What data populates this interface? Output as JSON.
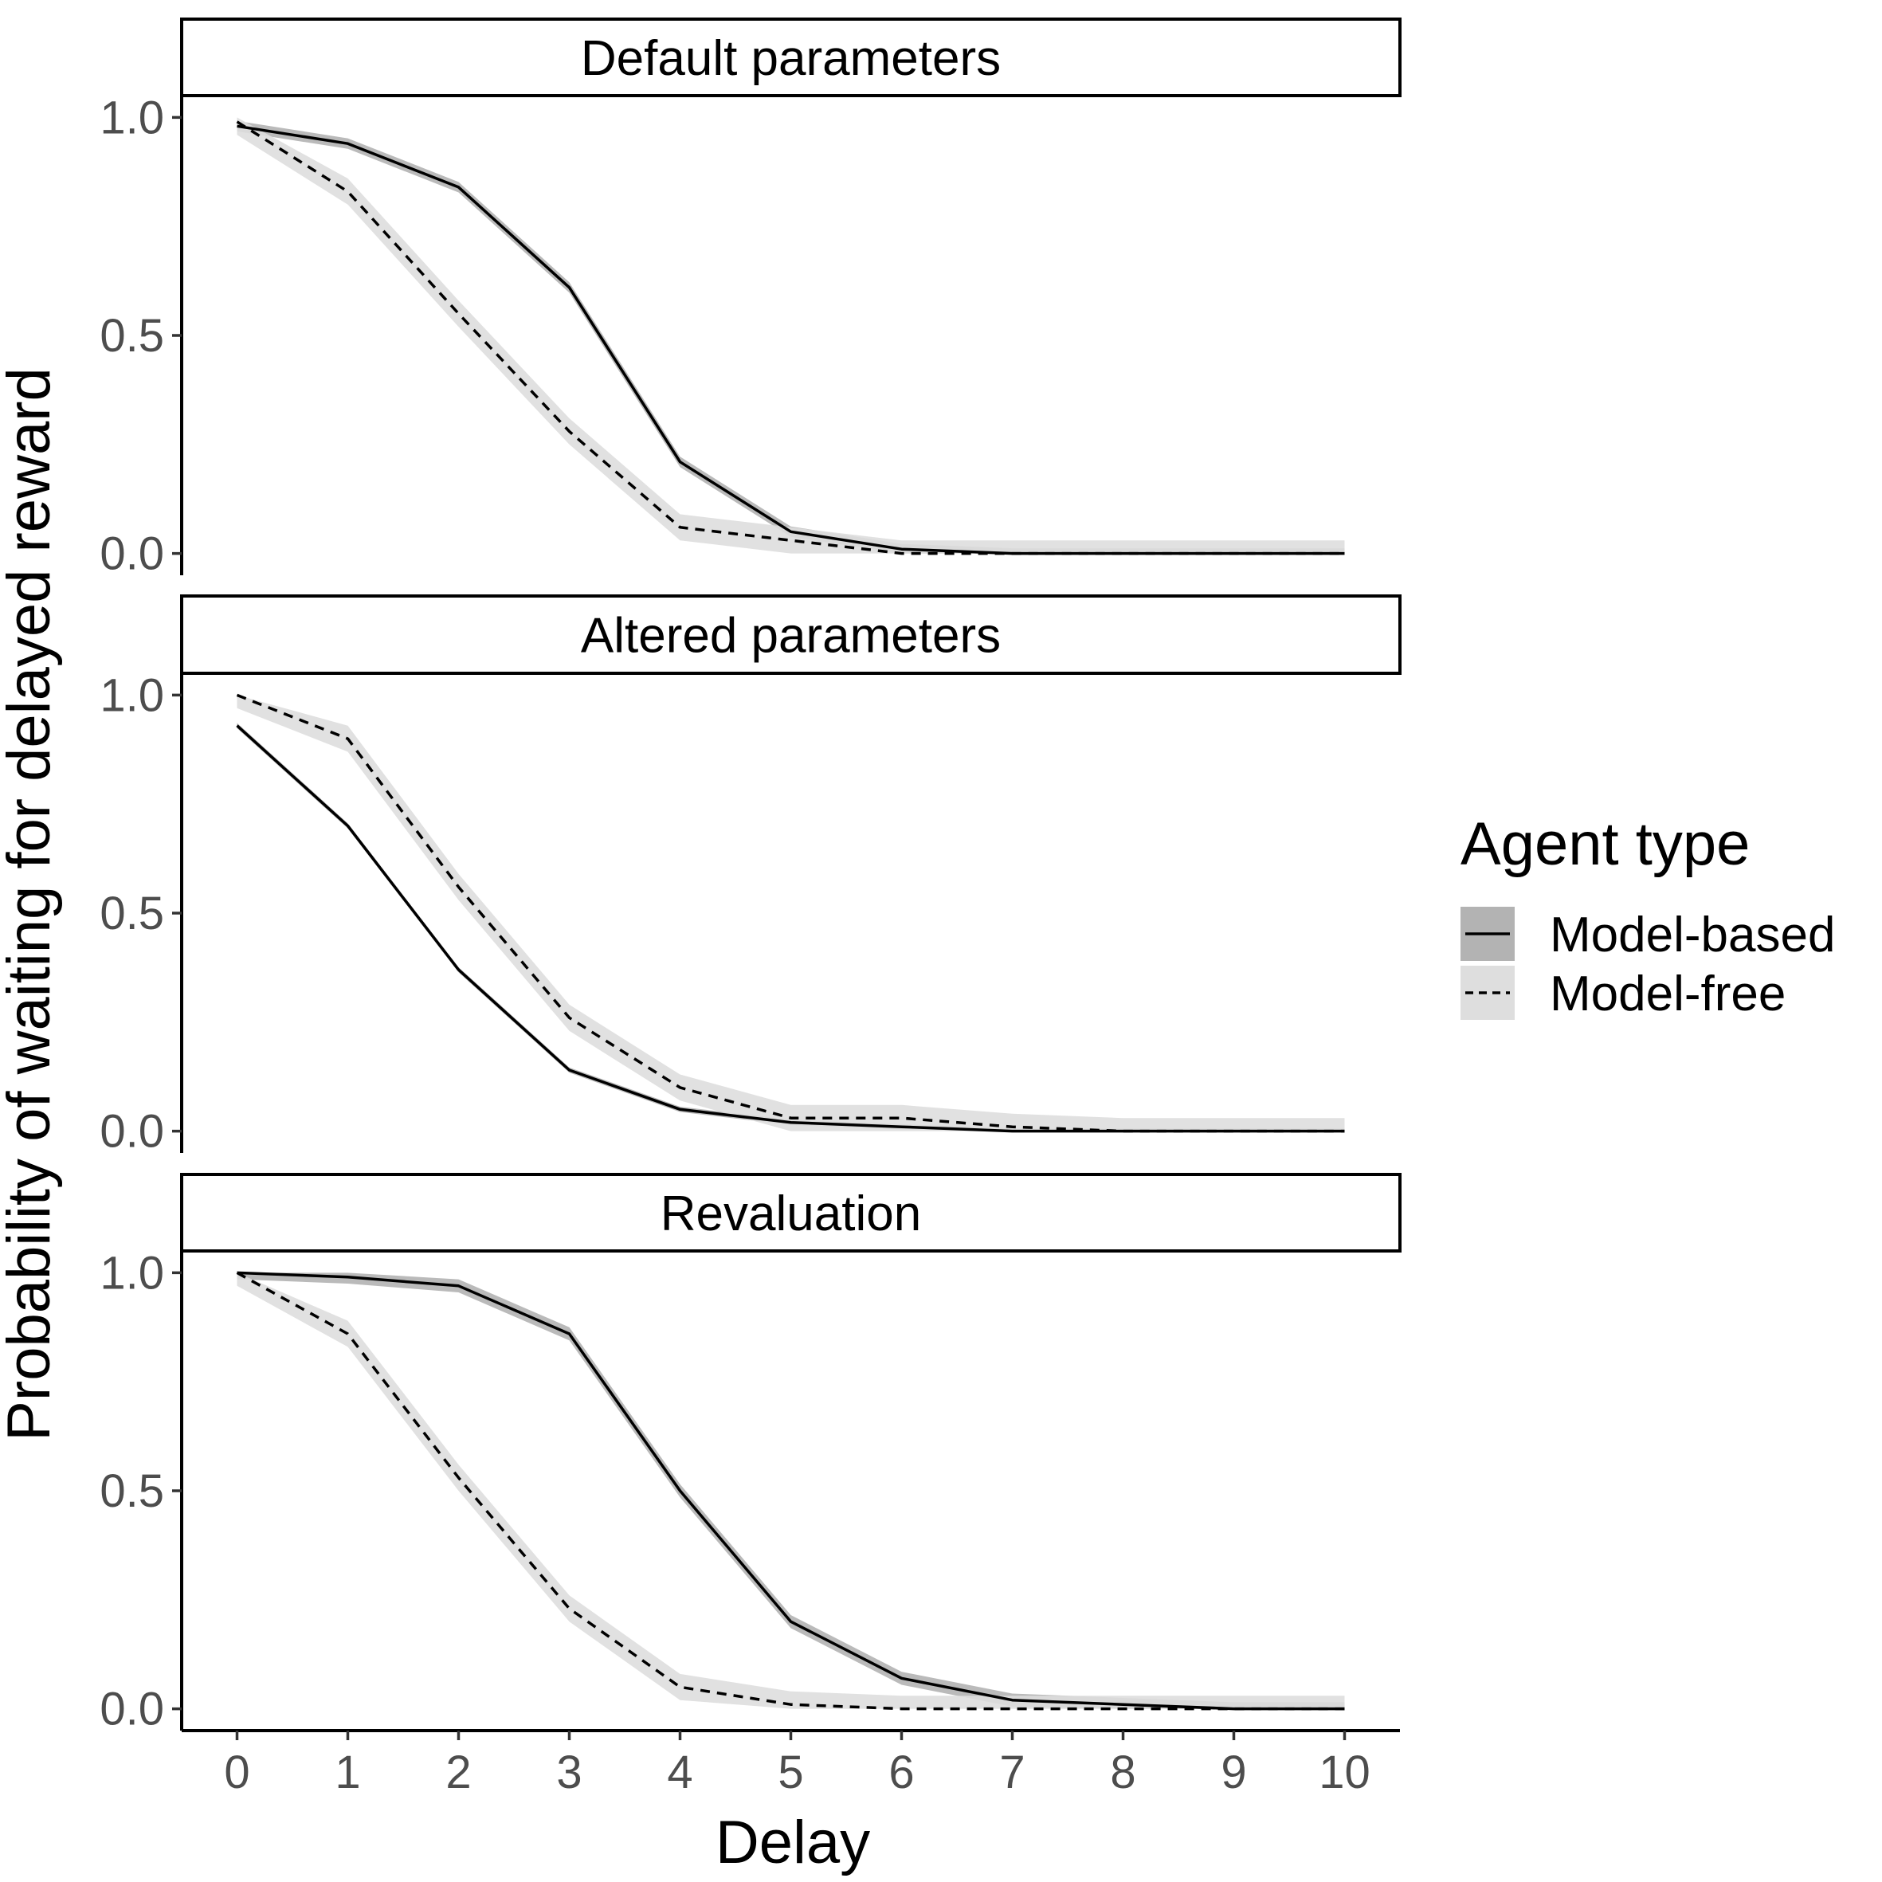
{
  "chart_data": {
    "type": "line",
    "xlabel": "Delay",
    "ylabel": "Probability of waiting for delayed reward",
    "x": [
      0,
      1,
      2,
      3,
      4,
      5,
      6,
      7,
      8,
      9,
      10
    ],
    "x_ticks": [
      "0",
      "1",
      "2",
      "3",
      "4",
      "5",
      "6",
      "7",
      "8",
      "9",
      "10"
    ],
    "y_ticks": [
      "0.0",
      "0.5",
      "1.0"
    ],
    "xlim": [
      -0.5,
      10.5
    ],
    "ylim": [
      -0.05,
      1.05
    ],
    "grid": false,
    "legend": {
      "title": "Agent type",
      "position": "right",
      "entries": [
        {
          "name": "Model-based",
          "line_style": "solid",
          "ribbon_color": "#b3b3b3"
        },
        {
          "name": "Model-free",
          "line_style": "dashed",
          "ribbon_color": "#dedede"
        }
      ]
    },
    "panels": [
      {
        "title": "Default parameters",
        "series": [
          {
            "name": "Model-based",
            "values": [
              0.98,
              0.94,
              0.84,
              0.61,
              0.21,
              0.05,
              0.01,
              0.0,
              0.0,
              0.0,
              0.0
            ],
            "band": 0.012
          },
          {
            "name": "Model-free",
            "values": [
              0.99,
              0.83,
              0.55,
              0.28,
              0.06,
              0.03,
              0.0,
              0.0,
              0.0,
              0.0,
              0.0
            ],
            "band": 0.03
          }
        ]
      },
      {
        "title": "Altered parameters",
        "series": [
          {
            "name": "Model-based",
            "values": [
              0.93,
              0.7,
              0.37,
              0.14,
              0.05,
              0.02,
              0.01,
              0.0,
              0.0,
              0.0,
              0.0
            ],
            "band": 0.006
          },
          {
            "name": "Model-free",
            "values": [
              1.0,
              0.9,
              0.56,
              0.26,
              0.1,
              0.03,
              0.03,
              0.01,
              0.0,
              0.0,
              0.0
            ],
            "band": 0.03
          }
        ]
      },
      {
        "title": "Revaluation",
        "series": [
          {
            "name": "Model-based",
            "values": [
              1.0,
              0.99,
              0.97,
              0.86,
              0.5,
              0.2,
              0.07,
              0.02,
              0.01,
              0.0,
              0.0
            ],
            "band": 0.015
          },
          {
            "name": "Model-free",
            "values": [
              1.0,
              0.86,
              0.53,
              0.23,
              0.05,
              0.01,
              0.0,
              0.0,
              0.0,
              0.0,
              0.0
            ],
            "band": 0.03
          }
        ]
      }
    ]
  }
}
